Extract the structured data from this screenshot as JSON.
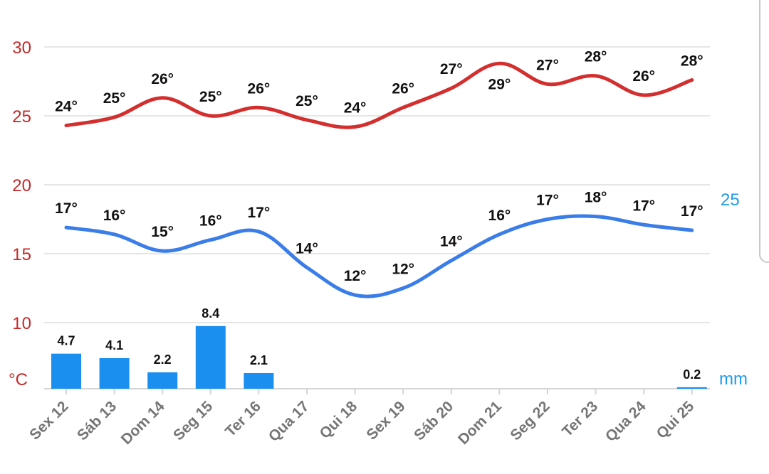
{
  "chart_data": {
    "type": "line",
    "x": [
      "Sex 12",
      "Sáb 13",
      "Dom 14",
      "Seg 15",
      "Ter 16",
      "Qua 17",
      "Qui 18",
      "Sex 19",
      "Sáb 20",
      "Dom 21",
      "Seg 22",
      "Ter 23",
      "Qua 24",
      "Qui 25"
    ],
    "series": [
      {
        "values": [
          24.3,
          24.9,
          26.3,
          25.0,
          25.6,
          24.7,
          24.2,
          25.6,
          27.0,
          28.8,
          27.3,
          27.9,
          26.5,
          27.6
        ],
        "labels": [
          "24°",
          "25°",
          "26°",
          "25°",
          "26°",
          "25°",
          "24°",
          "26°",
          "27°",
          "29°",
          "27°",
          "28°",
          "26°",
          "28°"
        ],
        "color": "#d32f2f"
      },
      {
        "values": [
          16.9,
          16.4,
          15.2,
          16.0,
          16.6,
          14.0,
          12.0,
          12.5,
          14.5,
          16.4,
          17.5,
          17.7,
          17.1,
          16.7
        ],
        "labels": [
          "17°",
          "16°",
          "15°",
          "16°",
          "17°",
          "14°",
          "12°",
          "12°",
          "14°",
          "16°",
          "17°",
          "18°",
          "17°",
          "17°"
        ],
        "color": "#3b7de8"
      },
      {
        "type": "bar",
        "values": [
          4.7,
          4.1,
          2.2,
          8.4,
          2.1,
          0,
          0,
          0,
          0,
          0,
          0,
          0,
          0,
          0.2
        ],
        "labels": [
          "4.7",
          "4.1",
          "2.2",
          "8.4",
          "2.1",
          "",
          "",
          "",
          "",
          "",
          "",
          "",
          "",
          "0.2"
        ],
        "color": "#1a8ff0"
      }
    ],
    "y_left": {
      "ticks": [
        "30",
        "25",
        "20",
        "15",
        "10"
      ],
      "unit": "°C",
      "range": [
        5,
        32
      ],
      "color": "#c62828"
    },
    "y_right": {
      "ticks": [
        "25"
      ],
      "unit": "mm",
      "color": "#1e9be8"
    },
    "grid": true
  }
}
